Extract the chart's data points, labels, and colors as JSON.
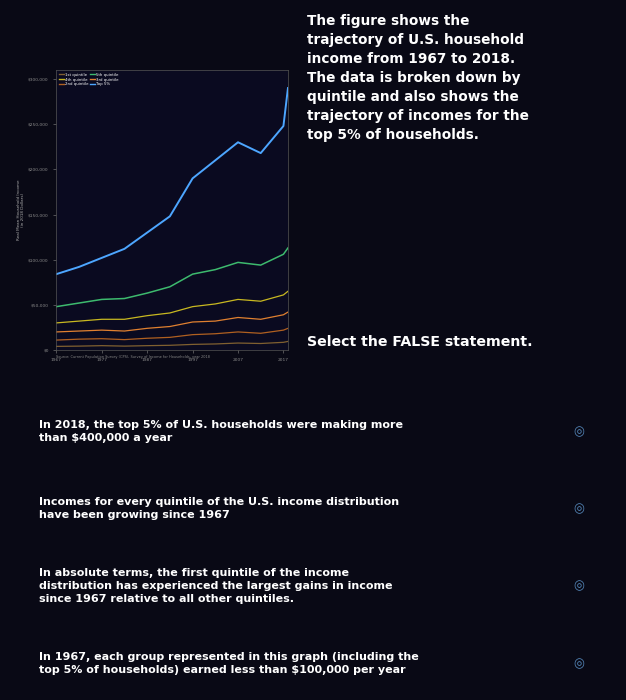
{
  "background_color": "#090915",
  "top_bg": "#0d0d20",
  "title_text": "The figure shows the\ntrajectory of U.S. household\nincome from 1967 to 2018.\nThe data is broken down by\nquintile and also shows the\ntrajectory of incomes for the\ntop 5% of households.",
  "subtitle_text": "Select the FALSE statement.",
  "chart_bg": "#0a0a20",
  "years_full": [
    1967,
    1972,
    1977,
    1982,
    1987,
    1992,
    1997,
    2002,
    2007,
    2012,
    2017,
    2018
  ],
  "top5": [
    84000,
    92000,
    102000,
    112000,
    130000,
    148000,
    190000,
    210000,
    230000,
    218000,
    248000,
    290000
  ],
  "q5": [
    48000,
    52000,
    56000,
    57000,
    63000,
    70000,
    84000,
    89000,
    97000,
    94000,
    106000,
    113000
  ],
  "q4": [
    30000,
    32000,
    34000,
    34000,
    38000,
    41000,
    48000,
    51000,
    56000,
    54000,
    61000,
    65000
  ],
  "q3": [
    20000,
    21000,
    22000,
    21000,
    24000,
    26000,
    31000,
    32000,
    36000,
    34000,
    39000,
    42000
  ],
  "q2": [
    11000,
    12000,
    12500,
    11500,
    13000,
    14000,
    17000,
    18000,
    20000,
    18500,
    22000,
    24000
  ],
  "q1": [
    4000,
    4300,
    4800,
    4300,
    4800,
    5200,
    6200,
    6700,
    7700,
    7200,
    8500,
    9500
  ],
  "colors": {
    "top5": "#4da6ff",
    "q5": "#3dba6e",
    "q4": "#c8b820",
    "q3": "#e08030",
    "q2": "#b06020",
    "q1": "#806030"
  },
  "ytick_vals": [
    0,
    50000,
    100000,
    150000,
    200000,
    250000,
    300000
  ],
  "ytick_labels": [
    "$0",
    "$50,000",
    "$100,000",
    "$150,000",
    "$200,000",
    "$250,000",
    "$300,000"
  ],
  "xtick_vals": [
    1967,
    1977,
    1987,
    1997,
    2007,
    2017
  ],
  "xtick_labels": [
    "1967",
    "1977",
    "1987",
    "1997",
    "2007",
    "2017"
  ],
  "legend": [
    {
      "label": "1st quintile",
      "color": "#806030"
    },
    {
      "label": "4th quintile",
      "color": "#c8b820"
    },
    {
      "label": "2nd quintile",
      "color": "#b06020"
    },
    {
      "label": "5th quintile",
      "color": "#3dba6e"
    },
    {
      "label": "3rd quintile",
      "color": "#e08030"
    },
    {
      "label": "Top 5%",
      "color": "#4da6ff"
    }
  ],
  "source_text": "Source: Current Population Survey (CPS), Survey of Income for Households, year 2018",
  "options": [
    "In 2018, the top 5% of U.S. households were making more\nthan $400,000 a year",
    "Incomes for every quintile of the U.S. income distribution\nhave been growing since 1967",
    "In absolute terms, the first quintile of the income\ndistribution has experienced the largest gains in income\nsince 1967 relative to all other quintiles.",
    "In 1967, each group represented in this graph (including the\ntop 5% of households) earned less than $100,000 per year"
  ],
  "option_bg": "#1a3560",
  "option_text_color": "#ffffff",
  "option_icon": "◎"
}
